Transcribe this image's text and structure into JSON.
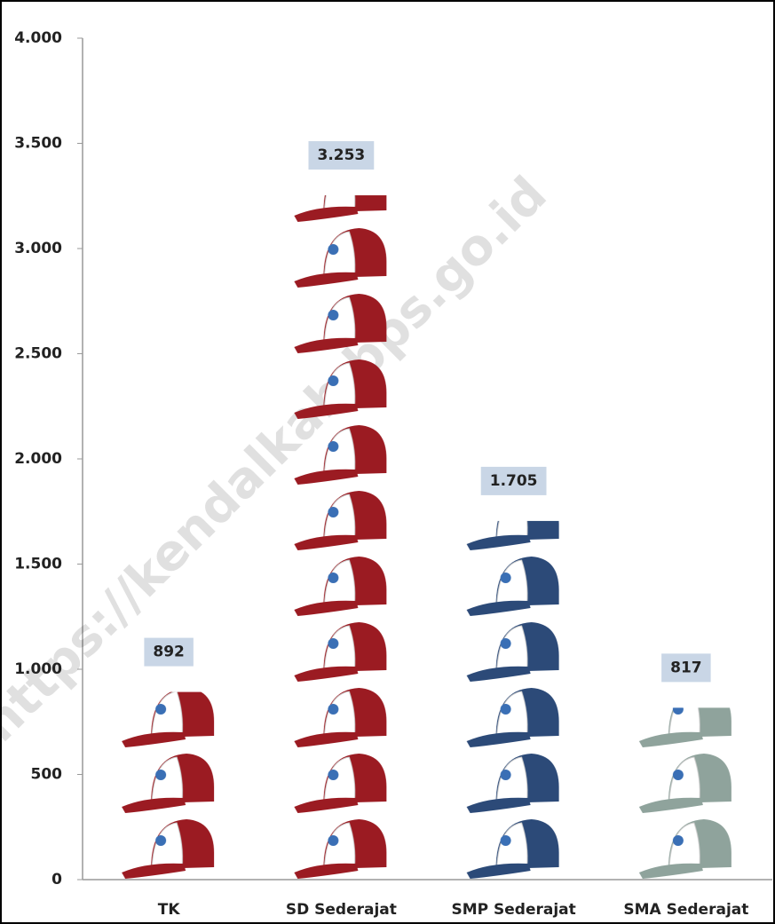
{
  "chart_data": {
    "type": "pictograph",
    "categories": [
      "TK",
      "SD Sederajat",
      "SMP Sederajat",
      "SMA Sederajat"
    ],
    "values": [
      892,
      3253,
      1705,
      817
    ],
    "value_labels": [
      "892",
      "3.253",
      "1.705",
      "817"
    ],
    "colors": [
      "#9b1b22",
      "#9b1b22",
      "#2c4a78",
      "#8fa39c"
    ],
    "ylim": [
      0,
      4000
    ],
    "yticks": [
      0,
      500,
      {
        "value": 1000,
        "label": "1.000"
      },
      {
        "value": 1500,
        "label": "1.500"
      },
      {
        "value": 2000,
        "label": "2.000"
      },
      {
        "value": 2500,
        "label": "2.500"
      },
      {
        "value": 3000,
        "label": "3.000"
      },
      {
        "value": 3500,
        "label": "3.500"
      },
      {
        "value": 4000,
        "label": "4.000"
      }
    ],
    "watermark": "https://kendalkab.bps.go.id"
  }
}
